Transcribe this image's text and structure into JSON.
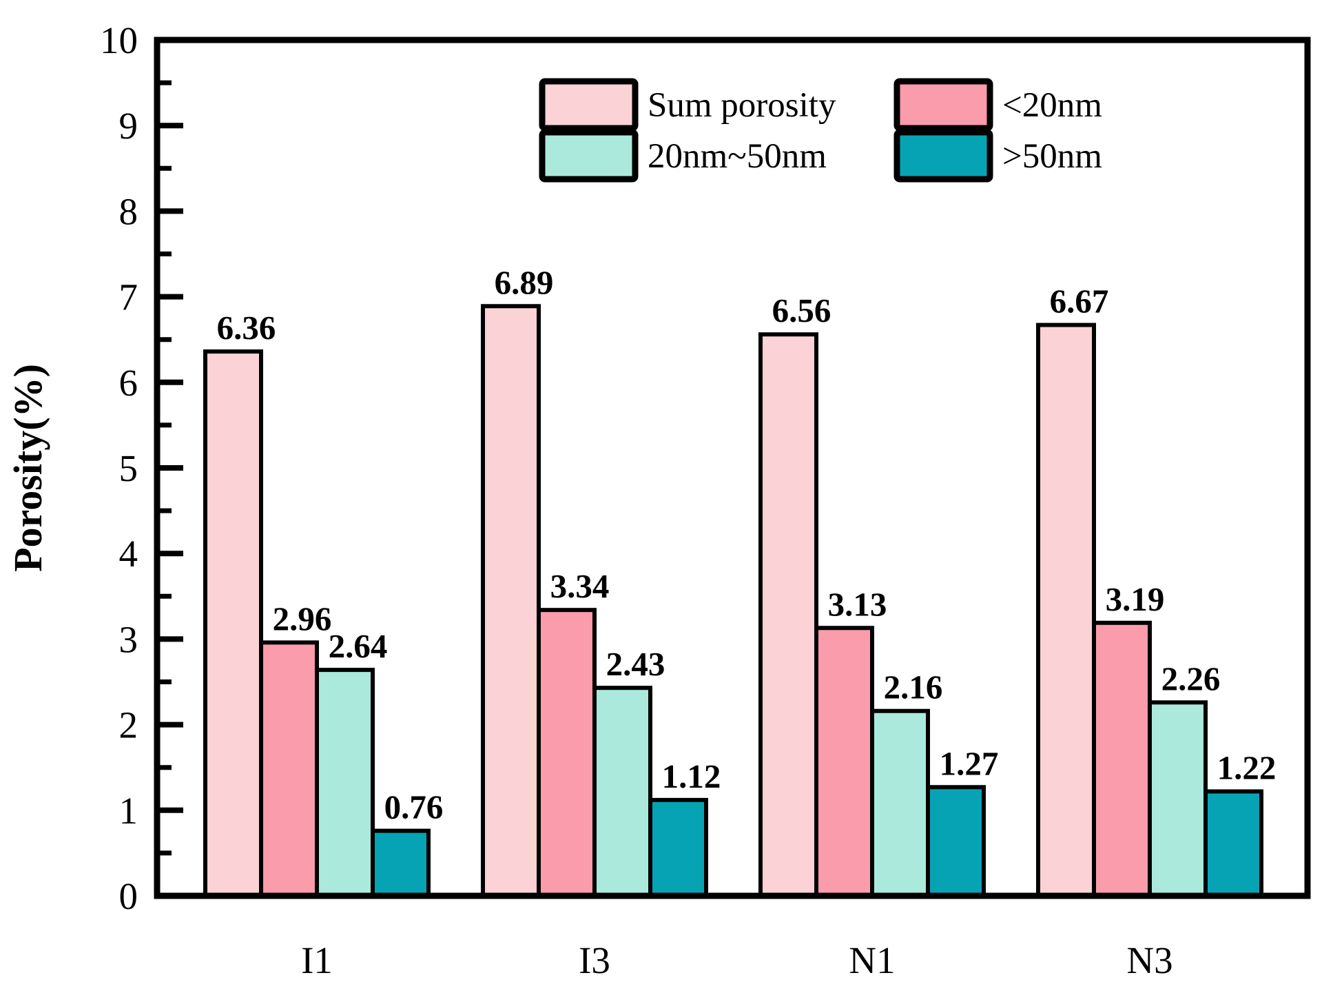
{
  "chart_data": {
    "type": "bar",
    "title": "",
    "xlabel": "",
    "ylabel": "Porosity(%)",
    "categories": [
      "I1",
      "I3",
      "N1",
      "N3"
    ],
    "series": [
      {
        "name": "Sum porosity",
        "color": "#FBD2D5",
        "values": [
          6.36,
          6.89,
          6.56,
          6.67
        ]
      },
      {
        "name": "<20nm",
        "color": "#FA9CAB",
        "values": [
          2.96,
          3.34,
          3.13,
          3.19
        ]
      },
      {
        "name": "20nm~50nm",
        "color": "#ACE9DD",
        "values": [
          2.64,
          2.43,
          2.16,
          2.26
        ]
      },
      {
        "name": ">50nm",
        "color": "#06A3B4",
        "values": [
          0.76,
          1.12,
          1.27,
          1.22
        ]
      }
    ],
    "value_labels": [
      [
        "6.36",
        "6.89",
        "6.56",
        "6.67"
      ],
      [
        "2.96",
        "3.34",
        "3.13",
        "3.19"
      ],
      [
        "2.64",
        "2.43",
        "2.16",
        "2.26"
      ],
      [
        "0.76",
        "1.12",
        "1.27",
        "1.22"
      ]
    ],
    "ylim": [
      0,
      10
    ],
    "ytick_labels": [
      "0",
      "1",
      "2",
      "3",
      "4",
      "5",
      "6",
      "7",
      "8",
      "9",
      "10"
    ],
    "ytick_step": 1,
    "yminor_step": 0.5,
    "grid": false,
    "legend": {
      "position": "top-center",
      "columns": 2,
      "rows": [
        [
          "Sum porosity",
          "<20nm"
        ],
        [
          "20nm~50nm",
          ">50nm"
        ]
      ]
    },
    "bar_edge_color": "#000000",
    "axis_color": "#000000"
  }
}
